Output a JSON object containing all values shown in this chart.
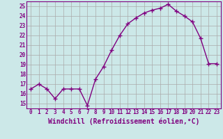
{
  "x": [
    0,
    1,
    2,
    3,
    4,
    5,
    6,
    7,
    8,
    9,
    10,
    11,
    12,
    13,
    14,
    15,
    16,
    17,
    18,
    19,
    20,
    21,
    22,
    23
  ],
  "y": [
    16.5,
    17.0,
    16.5,
    15.5,
    16.5,
    16.5,
    16.5,
    14.8,
    17.5,
    18.8,
    20.5,
    22.0,
    23.2,
    23.8,
    24.3,
    24.6,
    24.8,
    25.2,
    24.5,
    24.0,
    23.4,
    21.7,
    19.1,
    19.1
  ],
  "line_color": "#800080",
  "marker": "+",
  "marker_size": 4,
  "background_color": "#cce8e8",
  "grid_color": "#aaaaaa",
  "xlabel": "Windchill (Refroidissement éolien,°C)",
  "xlabel_color": "#800080",
  "ylim": [
    14.5,
    25.5
  ],
  "yticks": [
    15,
    16,
    17,
    18,
    19,
    20,
    21,
    22,
    23,
    24,
    25
  ],
  "xticks": [
    0,
    1,
    2,
    3,
    4,
    5,
    6,
    7,
    8,
    9,
    10,
    11,
    12,
    13,
    14,
    15,
    16,
    17,
    18,
    19,
    20,
    21,
    22,
    23
  ],
  "tick_color": "#800080",
  "tick_fontsize": 5.5,
  "xlabel_fontsize": 7.0,
  "linewidth": 1.0
}
